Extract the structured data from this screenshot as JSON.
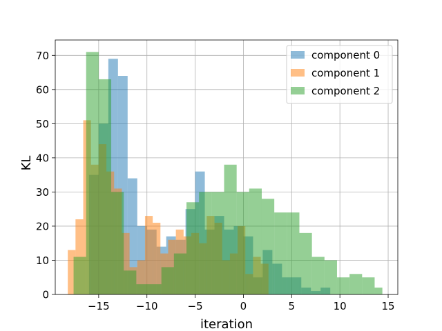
{
  "chart_data": {
    "type": "histogram",
    "xlabel": "iteration",
    "ylabel": "KL",
    "xlim": [
      -19.5,
      16.0
    ],
    "ylim": [
      0,
      74.5
    ],
    "xticks": [
      -15,
      -10,
      -5,
      0,
      5,
      10,
      15
    ],
    "xtick_labels": [
      "−15",
      "−10",
      "−5",
      "0",
      "5",
      "10",
      "15"
    ],
    "yticks": [
      0,
      10,
      20,
      30,
      40,
      50,
      60,
      70
    ],
    "ytick_labels": [
      "0",
      "10",
      "20",
      "30",
      "40",
      "50",
      "60",
      "70"
    ],
    "grid": true,
    "legend_position": "top-right",
    "alpha": 0.5,
    "series": [
      {
        "name": "component 0",
        "color": "#1f77b4",
        "bin_edges": [
          -16.0,
          -15.0,
          -14.0,
          -13.0,
          -12.0,
          -11.0,
          -10.0,
          -9.0,
          -8.0,
          -7.0,
          -6.0,
          -5.0,
          -4.0,
          -3.0,
          -2.0,
          -1.0,
          0.0,
          1.0,
          2.0,
          3.0,
          4.0,
          5.0,
          6.0,
          7.0,
          8.0,
          9.0
        ],
        "counts": [
          35,
          50,
          69,
          64,
          34,
          20,
          19,
          14,
          17,
          16,
          25,
          36,
          19,
          23,
          19,
          20,
          17,
          5,
          13,
          9,
          5,
          5,
          2,
          1,
          2
        ]
      },
      {
        "name": "component 1",
        "color": "#ff7f0e",
        "bin_edges": [
          -18.2,
          -17.4,
          -16.6,
          -15.8,
          -15.0,
          -14.2,
          -13.4,
          -12.6,
          -11.8,
          -11.0,
          -10.2,
          -9.4,
          -8.6,
          -7.8,
          -7.0,
          -6.2,
          -5.4,
          -4.6,
          -3.8,
          -3.0,
          -2.2,
          -1.4,
          -0.6,
          0.2,
          1.0,
          1.8,
          2.6
        ],
        "counts": [
          13,
          22,
          51,
          38,
          44,
          36,
          31,
          18,
          8,
          10,
          23,
          21,
          12,
          16,
          19,
          17,
          18,
          15,
          23,
          21,
          10,
          12,
          20,
          6,
          11,
          9
        ]
      },
      {
        "name": "component 2",
        "color": "#2ca02c",
        "bin_edges": [
          -17.6,
          -16.3,
          -15.0,
          -13.7,
          -12.4,
          -11.1,
          -9.8,
          -8.5,
          -7.2,
          -5.9,
          -4.6,
          -3.3,
          -2.0,
          -0.7,
          0.6,
          1.9,
          3.2,
          4.5,
          5.8,
          7.1,
          8.4,
          9.7,
          11.0,
          12.3,
          13.6,
          14.4
        ],
        "counts": [
          11,
          71,
          63,
          30,
          7,
          3,
          3,
          8,
          12,
          27,
          30,
          30,
          38,
          30,
          31,
          28,
          24,
          24,
          18,
          11,
          10,
          5,
          6,
          5,
          2
        ]
      }
    ]
  }
}
